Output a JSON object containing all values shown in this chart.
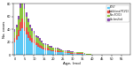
{
  "title": "",
  "xlabel": "Age, (mo)",
  "ylabel": "No. cases",
  "colors": [
    "#5bc8f5",
    "#e8534a",
    "#8dc63f",
    "#8b4faf"
  ],
  "legend_labels": [
    "PCV7",
    "Additional PCV13",
    "Non-PCV13",
    "Unclassified"
  ],
  "months": [
    0,
    1,
    2,
    3,
    4,
    5,
    6,
    7,
    8,
    9,
    10,
    11,
    12,
    13,
    14,
    15,
    16,
    17,
    18,
    19,
    20,
    21,
    22,
    23,
    24,
    25,
    26,
    27,
    28,
    29,
    30,
    31,
    32,
    33,
    34,
    35,
    36,
    37,
    38,
    39,
    40,
    41,
    42,
    43,
    44,
    45,
    46,
    47,
    48,
    49,
    50,
    51,
    52,
    53,
    54,
    55,
    56,
    57,
    58,
    59
  ],
  "PCV7": [
    20,
    24,
    30,
    38,
    42,
    38,
    32,
    27,
    23,
    20,
    18,
    15,
    13,
    12,
    10,
    9,
    8,
    8,
    7,
    6,
    6,
    5,
    5,
    4,
    4,
    4,
    3,
    3,
    3,
    2,
    2,
    2,
    2,
    2,
    2,
    2,
    2,
    1,
    1,
    1,
    1,
    1,
    1,
    1,
    1,
    1,
    1,
    0,
    1,
    0,
    0,
    0,
    0,
    0,
    0,
    0,
    0,
    0,
    0,
    0
  ],
  "AddPCV13": [
    6,
    7,
    9,
    13,
    15,
    13,
    11,
    9,
    8,
    7,
    6,
    5,
    5,
    4,
    4,
    3,
    3,
    3,
    2,
    2,
    2,
    2,
    2,
    2,
    2,
    1,
    1,
    1,
    1,
    1,
    1,
    1,
    1,
    1,
    1,
    1,
    0,
    0,
    0,
    0,
    0,
    0,
    0,
    0,
    0,
    0,
    0,
    0,
    0,
    0,
    0,
    0,
    0,
    0,
    0,
    0,
    0,
    0,
    0,
    0
  ],
  "NonPCV13": [
    10,
    12,
    16,
    22,
    24,
    21,
    17,
    15,
    12,
    11,
    9,
    8,
    8,
    7,
    6,
    5,
    5,
    4,
    4,
    4,
    3,
    3,
    3,
    3,
    2,
    2,
    2,
    2,
    2,
    2,
    2,
    1,
    1,
    1,
    1,
    1,
    1,
    1,
    1,
    1,
    0,
    0,
    0,
    0,
    0,
    0,
    0,
    0,
    0,
    0,
    0,
    0,
    0,
    0,
    0,
    0,
    0,
    0,
    0,
    0
  ],
  "Unclassified": [
    4,
    5,
    6,
    8,
    9,
    8,
    7,
    6,
    5,
    4,
    4,
    3,
    3,
    3,
    2,
    2,
    2,
    2,
    1,
    2,
    1,
    1,
    1,
    1,
    1,
    1,
    1,
    1,
    1,
    1,
    1,
    1,
    0,
    0,
    0,
    0,
    0,
    0,
    0,
    0,
    0,
    0,
    0,
    0,
    0,
    0,
    0,
    0,
    0,
    0,
    0,
    0,
    0,
    0,
    0,
    0,
    0,
    0,
    0,
    0
  ],
  "ylim": [
    0,
    80
  ],
  "xlim": [
    -0.6,
    59.6
  ],
  "xticks": [
    0,
    5,
    10,
    15,
    20,
    25,
    30,
    35,
    40,
    45,
    50,
    55
  ],
  "yticks": [
    0,
    20,
    40,
    60,
    80
  ]
}
